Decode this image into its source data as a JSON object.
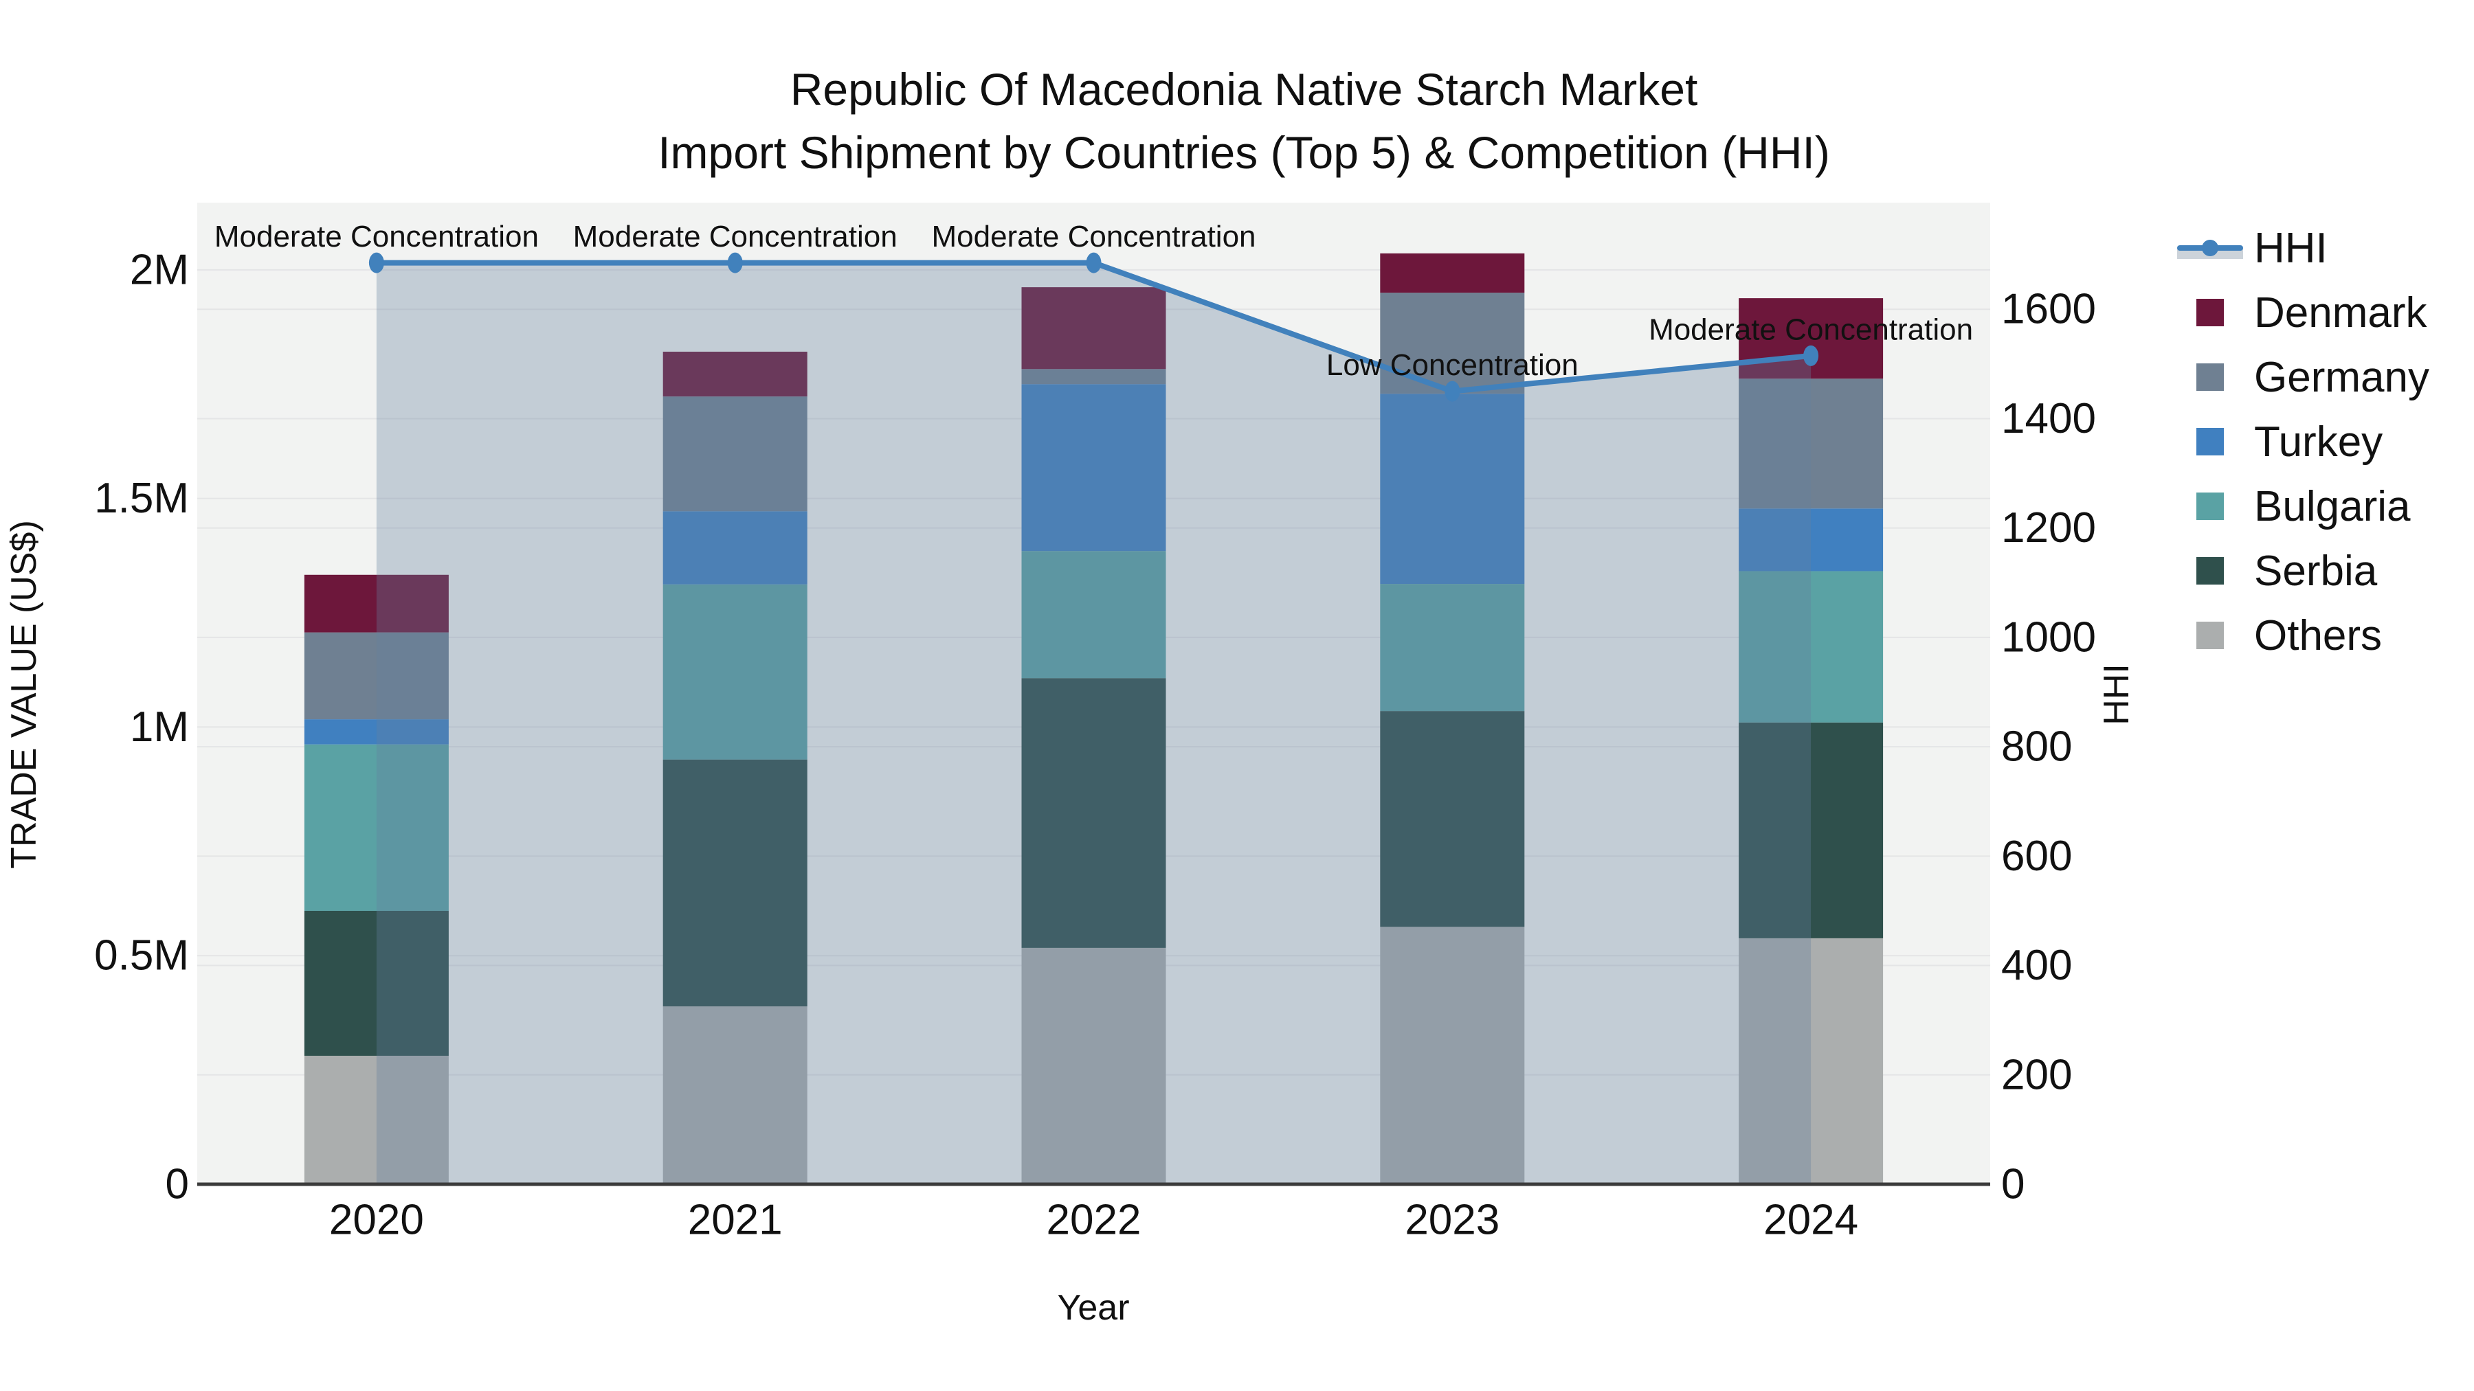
{
  "chart_data": {
    "type": "bar+line",
    "title": "Republic Of Macedonia Native Starch Market",
    "subtitle": "Import Shipment by Countries (Top 5) & Competition (HHI)",
    "xlabel": "Year",
    "ylabel_left": "TRADE VALUE (US$)",
    "ylabel_right": "HHI",
    "categories": [
      "2020",
      "2021",
      "2022",
      "2023",
      "2024"
    ],
    "bar_unit": "M US$",
    "bar_series": [
      {
        "name": "Others",
        "color": "#abaeae",
        "values": [
          0.281,
          0.389,
          0.517,
          0.563,
          0.538
        ]
      },
      {
        "name": "Serbia",
        "color": "#2f504c",
        "values": [
          0.317,
          0.54,
          0.59,
          0.472,
          0.472
        ]
      },
      {
        "name": "Bulgaria",
        "color": "#5aa2a4",
        "values": [
          0.364,
          0.383,
          0.278,
          0.278,
          0.331
        ]
      },
      {
        "name": "Turkey",
        "color": "#4080c0",
        "values": [
          0.055,
          0.16,
          0.365,
          0.416,
          0.137
        ]
      },
      {
        "name": "Germany",
        "color": "#6f8092",
        "values": [
          0.19,
          0.251,
          0.033,
          0.221,
          0.284
        ]
      },
      {
        "name": "Denmark",
        "color": "#6d173b",
        "values": [
          0.126,
          0.098,
          0.179,
          0.086,
          0.176
        ]
      }
    ],
    "line_series": {
      "name": "HHI",
      "color": "#4181bc",
      "fill_color": "rgba(100,128,158,0.33)",
      "values": [
        1685,
        1685,
        1685,
        1450,
        1515
      ]
    },
    "annotations": [
      "Moderate Concentration",
      "Moderate Concentration",
      "Moderate Concentration",
      "Low Concentration",
      "Moderate Concentration"
    ],
    "left_axis": {
      "tick_labels": [
        "0",
        "0.5M",
        "1M",
        "1.5M",
        "2M"
      ],
      "tick_values": [
        0,
        0.5,
        1.0,
        1.5,
        2.0
      ],
      "range": [
        0,
        2.147
      ]
    },
    "right_axis": {
      "tick_labels": [
        "0",
        "200",
        "400",
        "600",
        "800",
        "1000",
        "1200",
        "1400",
        "1600"
      ],
      "tick_values": [
        0,
        200,
        400,
        600,
        800,
        1000,
        1200,
        1400,
        1600
      ],
      "range": [
        0,
        1795
      ]
    },
    "legend_order": [
      "HHI",
      "Denmark",
      "Germany",
      "Turkey",
      "Bulgaria",
      "Serbia",
      "Others"
    ],
    "grid": true,
    "legend_position": "right"
  },
  "style_colors": {
    "plot_bg": "#f2f3f2",
    "grid_line": "#e4e5e6",
    "axis_line": "#3b3b3b",
    "text": "#111111"
  }
}
